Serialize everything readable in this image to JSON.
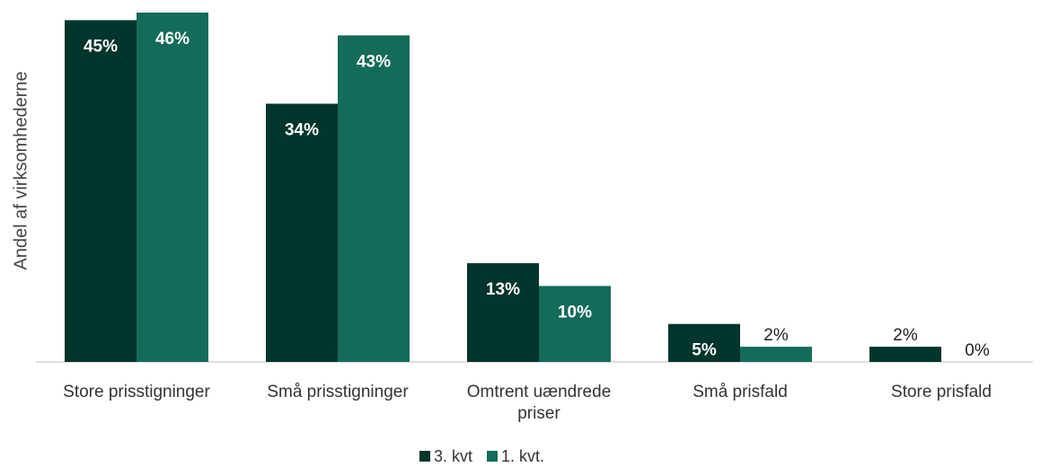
{
  "chart_data": {
    "type": "bar",
    "y_label": "Andel af virksomhederne",
    "categories": [
      "Store prisstigninger",
      "Små prisstigninger",
      "Omtrent uændrede priser",
      "Små prisfald",
      "Store prisfald"
    ],
    "series": [
      {
        "name": "3. kvt",
        "color": "#02352c",
        "values": [
          45,
          34,
          13,
          5,
          2
        ],
        "value_labels": [
          "45%",
          "34%",
          "13%",
          "5%",
          "2%"
        ]
      },
      {
        "name": "1. kvt.",
        "color": "#146b5a",
        "values": [
          46,
          43,
          10,
          2,
          0
        ],
        "value_labels": [
          "46%",
          "43%",
          "10%",
          "2%",
          "0%"
        ]
      }
    ]
  }
}
